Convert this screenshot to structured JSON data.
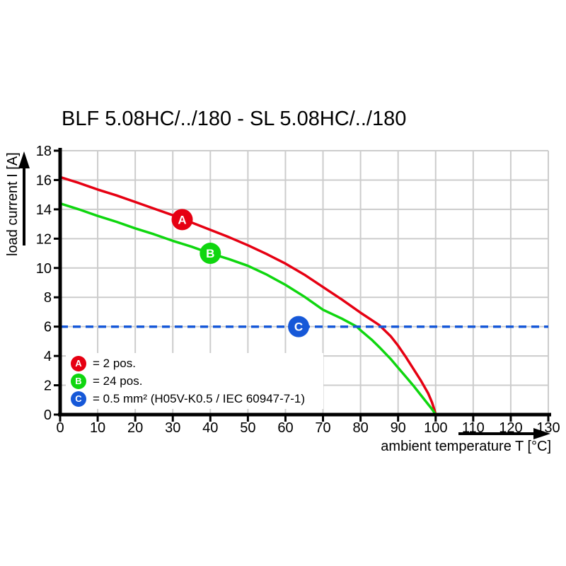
{
  "title": "BLF 5.08HC/../180 - SL 5.08HC/../180",
  "axes": {
    "y_label": "load current I [A]",
    "x_label": "ambient temperature T [°C]"
  },
  "legend": {
    "items": [
      {
        "letter": "A",
        "label": "= 2 pos.",
        "color": "#e60012"
      },
      {
        "letter": "B",
        "label": "= 24 pos.",
        "color": "#0fd60f"
      },
      {
        "letter": "C",
        "label": "= 0.5 mm² (H05V-K0.5 / IEC 60947-7-1)",
        "color": "#1658d8"
      }
    ]
  },
  "chart_data": {
    "type": "line",
    "title": "BLF 5.08HC/../180 - SL 5.08HC/../180",
    "xlabel": "ambient temperature T [°C]",
    "ylabel": "load current I [A]",
    "xlim": [
      0,
      130
    ],
    "ylim": [
      0,
      18
    ],
    "x_ticks": [
      0,
      10,
      20,
      30,
      40,
      50,
      60,
      70,
      80,
      90,
      100,
      110,
      120,
      130
    ],
    "y_ticks": [
      0,
      2,
      4,
      6,
      8,
      10,
      12,
      14,
      16,
      18
    ],
    "grid": true,
    "grid_color": "#cccccc",
    "axis_color": "#000000",
    "series": [
      {
        "name": "A",
        "legend": "2 pos.",
        "color": "#e60012",
        "style": "solid",
        "points": [
          [
            0,
            16.2
          ],
          [
            5,
            15.8
          ],
          [
            10,
            15.35
          ],
          [
            15,
            14.95
          ],
          [
            20,
            14.5
          ],
          [
            25,
            14.05
          ],
          [
            30,
            13.6
          ],
          [
            35,
            13.1
          ],
          [
            40,
            12.6
          ],
          [
            45,
            12.1
          ],
          [
            50,
            11.55
          ],
          [
            55,
            10.95
          ],
          [
            60,
            10.3
          ],
          [
            65,
            9.55
          ],
          [
            70,
            8.7
          ],
          [
            75,
            7.85
          ],
          [
            80,
            6.95
          ],
          [
            85,
            6.1
          ],
          [
            88,
            5.35
          ],
          [
            90,
            4.7
          ],
          [
            92,
            3.95
          ],
          [
            94,
            3.15
          ],
          [
            96,
            2.35
          ],
          [
            98,
            1.45
          ],
          [
            99,
            0.85
          ],
          [
            99.7,
            0.3
          ],
          [
            100,
            0
          ]
        ]
      },
      {
        "name": "B",
        "legend": "24 pos.",
        "color": "#0fd60f",
        "style": "solid",
        "points": [
          [
            0,
            14.4
          ],
          [
            5,
            14.0
          ],
          [
            10,
            13.55
          ],
          [
            15,
            13.15
          ],
          [
            20,
            12.7
          ],
          [
            25,
            12.3
          ],
          [
            30,
            11.85
          ],
          [
            35,
            11.45
          ],
          [
            40,
            11.0
          ],
          [
            45,
            10.6
          ],
          [
            50,
            10.15
          ],
          [
            55,
            9.55
          ],
          [
            60,
            8.85
          ],
          [
            65,
            8.05
          ],
          [
            70,
            7.15
          ],
          [
            75,
            6.55
          ],
          [
            79,
            6.0
          ],
          [
            80,
            5.75
          ],
          [
            83,
            5.1
          ],
          [
            85,
            4.6
          ],
          [
            88,
            3.8
          ],
          [
            90,
            3.2
          ],
          [
            92,
            2.6
          ],
          [
            94,
            2.0
          ],
          [
            96,
            1.35
          ],
          [
            98,
            0.7
          ],
          [
            99,
            0.38
          ],
          [
            99.7,
            0.12
          ],
          [
            100,
            0
          ]
        ]
      },
      {
        "name": "C",
        "legend": "0.5 mm² (H05V-K0.5 / IEC 60947-7-1)",
        "color": "#1658d8",
        "style": "dashed",
        "points": [
          [
            0,
            6
          ],
          [
            130,
            6
          ]
        ]
      }
    ],
    "markers": [
      {
        "letter": "A",
        "x": 32.5,
        "y": 13.3,
        "color": "#e60012"
      },
      {
        "letter": "B",
        "x": 40,
        "y": 11.0,
        "color": "#0fd60f"
      },
      {
        "letter": "C",
        "x": 63.5,
        "y": 6.0,
        "color": "#1658d8"
      }
    ]
  }
}
